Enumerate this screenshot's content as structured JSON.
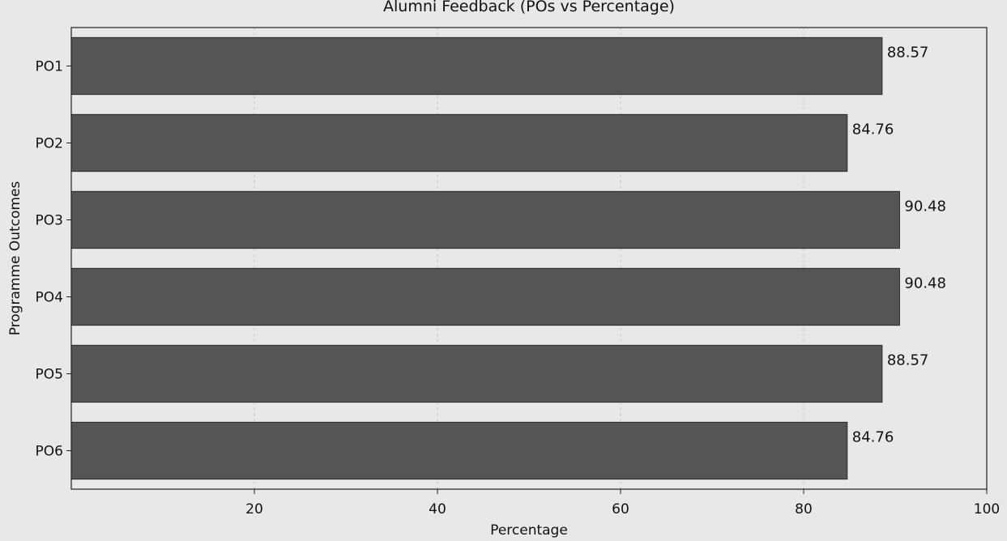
{
  "chart_data": {
    "type": "bar",
    "orientation": "horizontal",
    "title": "Alumni Feedback (POs vs Percentage)",
    "xlabel": "Percentage",
    "ylabel": "Programme Outcomes",
    "categories": [
      "PO1",
      "PO2",
      "PO3",
      "PO4",
      "PO5",
      "PO6"
    ],
    "values": [
      88.57,
      84.76,
      90.48,
      90.48,
      88.57,
      84.76
    ],
    "data_labels": [
      "88.57",
      "84.76",
      "90.48",
      "90.48",
      "88.57",
      "84.76"
    ],
    "xlim": [
      0,
      100
    ],
    "xticks": [
      20,
      40,
      60,
      80,
      100
    ],
    "xtick_labels": [
      "20",
      "40",
      "60",
      "80",
      "100"
    ],
    "grid": "vertical dashed",
    "bar_color": "#555555"
  }
}
